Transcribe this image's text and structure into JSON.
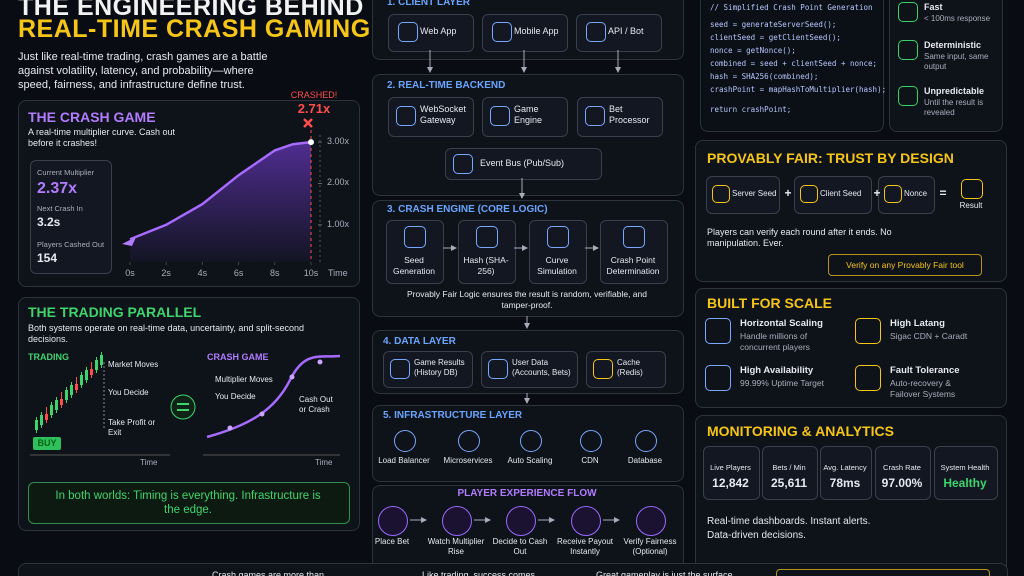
{
  "header": {
    "title_line1": "THE ENGINEERING BEHIND",
    "title_line2": "REAL-TIME CRASH GAMING",
    "intro": "Just like real-time trading, crash games are a battle against volatility, latency, and probability—where speed, fairness, and infrastructure define trust."
  },
  "crash_game": {
    "title": "THE CRASH GAME",
    "subtitle": "A real-time multiplier curve. Cash out before it crashes!",
    "stats": [
      {
        "label": "Current Multiplier",
        "value": "2.37x"
      },
      {
        "label": "Next Crash In",
        "value": "3.2s"
      },
      {
        "label": "Players Cashed Out",
        "value": "154"
      }
    ],
    "crashed_label": "CRASHED!",
    "crashed_value": "2.71x",
    "x_axis_label": "Time"
  },
  "crash_chart": {
    "type": "line",
    "x": [
      0,
      2,
      4,
      6,
      8,
      9,
      10
    ],
    "values": [
      0.65,
      1.0,
      1.5,
      2.2,
      2.8,
      2.95,
      3.0
    ],
    "xlim": [
      0,
      10
    ],
    "ylim": [
      0.1,
      3.1
    ],
    "color": "#a66bff",
    "xticks": [
      {
        "value": 0,
        "label": "0s"
      },
      {
        "value": 2,
        "label": "2s"
      },
      {
        "value": 4,
        "label": "4s"
      },
      {
        "value": 6,
        "label": "6s"
      },
      {
        "value": 8,
        "label": "8s"
      },
      {
        "value": 10,
        "label": "10s"
      }
    ],
    "yticks": [
      {
        "value": 1,
        "label": "1.00x"
      },
      {
        "value": 2,
        "label": "2.00x"
      },
      {
        "value": 3,
        "label": "3.00x"
      }
    ]
  },
  "trading_parallel": {
    "title": "THE TRADING PARALLEL",
    "text": "Both systems operate on real-time data, uncertainty, and split-second decisions.",
    "trading": {
      "title": "TRADING",
      "steps": [
        "Market Moves",
        "You Decide",
        "Take Profit or Exit"
      ],
      "button": "BUY",
      "axis": "Time"
    },
    "crash": {
      "title": "CRASH GAME",
      "steps": [
        "Multiplier Moves",
        "You Decide",
        "Cash Out or Crash"
      ],
      "axis": "Time"
    },
    "conclusion": "In both worlds: Timing is everything. Infrastructure is the edge."
  },
  "layers": [
    {
      "title": "1. CLIENT LAYER",
      "items": [
        "Web App",
        "Mobile App",
        "API / Bot"
      ]
    },
    {
      "title": "2. REAL-TIME BACKEND",
      "items": [
        "WebSocket Gateway",
        "Game Engine",
        "Bet Processor",
        "Event Bus (Pub/Sub)"
      ]
    },
    {
      "title": "3. CRASH ENGINE (CORE LOGIC)",
      "items": [
        "Seed Generation",
        "Hash (SHA-256)",
        "Curve Simulation",
        "Crash Point Determination"
      ],
      "note": "Provably Fair Logic ensures the result is random, verifiable, and tamper-proof."
    },
    {
      "title": "4. DATA LAYER",
      "items": [
        "Game Results (History DB)",
        "User Data (Accounts, Bets)",
        "Cache (Redis)"
      ]
    },
    {
      "title": "5. INFRASTRUCTURE LAYER",
      "items": [
        "Load Balancer",
        "Microservices",
        "Auto Scaling",
        "CDN",
        "Database"
      ]
    }
  ],
  "flow": {
    "title": "PLAYER EXPERIENCE FLOW",
    "steps": [
      "Place Bet",
      "Watch Multiplier Rise",
      "Decide to Cash Out",
      "Receive Payout Instantly",
      "Verify Fairness (Optional)"
    ]
  },
  "code": {
    "lines": [
      "// Simplified Crash Point Generation",
      "seed = generateServerSeed();",
      "clientSeed = getClientSeed();",
      "nonce = getNonce();",
      "combined = seed + clientSeed + nonce;",
      "hash = SHA256(combined);",
      "crashPoint = mapHashToMultiplier(hash);",
      "return crashPoint;"
    ]
  },
  "properties": [
    {
      "title": "Fast",
      "text": "< 100ms response"
    },
    {
      "title": "Deterministic",
      "text": "Same input, same output"
    },
    {
      "title": "Unpredictable",
      "text": "Until the result is revealed"
    }
  ],
  "provably_fair": {
    "title": "PROVABLY FAIR: TRUST BY DESIGN",
    "inputs": [
      "Server Seed",
      "Client Seed",
      "Nonce"
    ],
    "operators": [
      "+",
      "+",
      "="
    ],
    "result": "Result",
    "text": "Players can verify each round after it ends. No manipulation. Ever.",
    "button": "Verify on any Provably Fair tool"
  },
  "scale": {
    "title": "BUILT FOR SCALE",
    "items": [
      {
        "title": "Horizontal Scaling",
        "text": "Handle millions of concurrent players"
      },
      {
        "title": "High Latang",
        "text": "Sigac CDN + Caradt"
      },
      {
        "title": "High Availability",
        "text": "99.99% Uptime Target"
      },
      {
        "title": "Fault Tolerance",
        "text": "Auto-recovery & Failover Systems"
      }
    ]
  },
  "monitoring": {
    "title": "MONITORING & ANALYTICS",
    "metrics": [
      {
        "label": "Live Players",
        "value": "12,842"
      },
      {
        "label": "Bets / Min",
        "value": "25,611"
      },
      {
        "label": "Avg. Latency",
        "value": "78ms"
      },
      {
        "label": "Crash Rate",
        "value": "97.00%"
      },
      {
        "label": "System Health",
        "value": "Healthy"
      }
    ],
    "lines": [
      "Real-time dashboards. Instant alerts.",
      "Data-driven decisions."
    ]
  },
  "footer": [
    "Crash games are more than",
    "Like trading, success comes",
    "Great gameplay is just the surface"
  ]
}
